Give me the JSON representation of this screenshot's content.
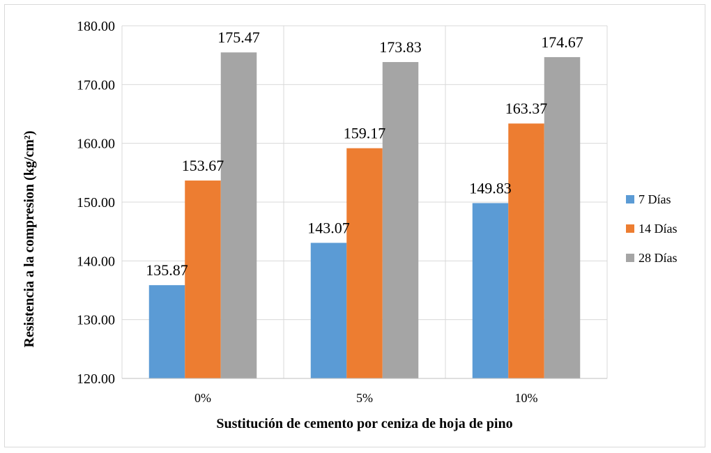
{
  "chart_data": {
    "type": "bar",
    "categories": [
      "0%",
      "5%",
      "10%"
    ],
    "series": [
      {
        "name": "7 Días",
        "color": "#5b9bd5",
        "values": [
          135.87,
          143.07,
          149.83
        ]
      },
      {
        "name": "14 Días",
        "color": "#ed7d31",
        "values": [
          153.67,
          159.17,
          163.37
        ]
      },
      {
        "name": "28 Días",
        "color": "#a5a5a5",
        "values": [
          175.47,
          173.83,
          174.67
        ]
      }
    ],
    "data_labels": [
      [
        "135.87",
        "143.07",
        "149.83"
      ],
      [
        "153.67",
        "159.17",
        "163.37"
      ],
      [
        "175.47",
        "173.83",
        "174.67"
      ]
    ],
    "title": "",
    "xlabel": "Sustitución de cemento por ceniza de hoja de pino",
    "ylabel": "Resistencia a la compresion (kg/cm²)",
    "ylim": [
      120,
      180
    ],
    "yticks": [
      "120.00",
      "130.00",
      "140.00",
      "150.00",
      "160.00",
      "170.00",
      "180.00"
    ],
    "grid": true,
    "legend_position": "right"
  }
}
